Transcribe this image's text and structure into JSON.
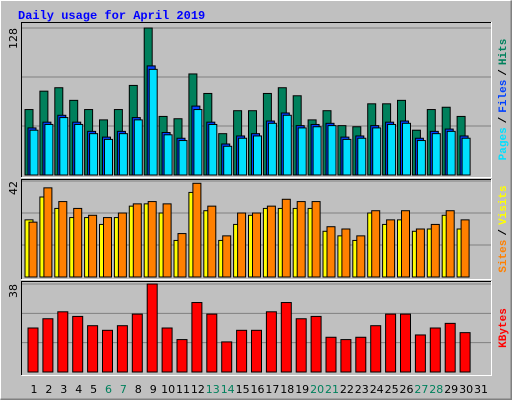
{
  "chart_data": [
    {
      "type": "bar",
      "title": "Daily usage for April 2019",
      "ylim": [
        0,
        128
      ],
      "yticks": [
        128
      ],
      "legend_separator": "/",
      "series": [
        {
          "name": "Hits",
          "color": "#00805c",
          "values": [
            57,
            73,
            76,
            65,
            57,
            48,
            57,
            78,
            128,
            51,
            49,
            88,
            71,
            36,
            56,
            56,
            71,
            76,
            69,
            48,
            56,
            43,
            42,
            62,
            62,
            65,
            39,
            57,
            59,
            51,
            null
          ]
        },
        {
          "name": "Files",
          "color": "#0040ff",
          "values": [
            41,
            46,
            52,
            46,
            38,
            33,
            38,
            50,
            95,
            37,
            32,
            60,
            46,
            27,
            34,
            36,
            47,
            54,
            43,
            44,
            45,
            33,
            34,
            43,
            46,
            47,
            32,
            38,
            40,
            34,
            null
          ]
        },
        {
          "name": "Pages",
          "color": "#00e0ff",
          "values": [
            39,
            44,
            50,
            44,
            36,
            31,
            36,
            48,
            92,
            35,
            30,
            57,
            44,
            25,
            32,
            34,
            45,
            52,
            41,
            42,
            43,
            31,
            32,
            41,
            44,
            45,
            30,
            36,
            38,
            32,
            null
          ]
        }
      ]
    },
    {
      "type": "bar",
      "ylim": [
        0,
        42
      ],
      "yticks": [
        42
      ],
      "legend_separator": "/",
      "series": [
        {
          "name": "Visits",
          "color": "#ffff00",
          "values": [
            25,
            35,
            30,
            26,
            26,
            23,
            26,
            31,
            32,
            28,
            16,
            37,
            29,
            16,
            23,
            27,
            30,
            30,
            30,
            30,
            20,
            18,
            16,
            28,
            23,
            25,
            20,
            21,
            27,
            21,
            null
          ]
        },
        {
          "name": "Sites",
          "color": "#ff8000",
          "values": [
            24,
            39,
            33,
            30,
            27,
            26,
            28,
            32,
            33,
            32,
            19,
            41,
            31,
            18,
            28,
            28,
            31,
            34,
            33,
            33,
            22,
            21,
            18,
            29,
            25,
            29,
            21,
            23,
            29,
            25,
            null
          ]
        }
      ]
    },
    {
      "type": "bar",
      "ylim": [
        0,
        38
      ],
      "yticks": [
        38
      ],
      "categories": [
        "1",
        "2",
        "3",
        "4",
        "5",
        "6",
        "7",
        "8",
        "9",
        "10",
        "11",
        "12",
        "13",
        "14",
        "15",
        "16",
        "17",
        "18",
        "19",
        "20",
        "21",
        "22",
        "23",
        "24",
        "25",
        "26",
        "27",
        "28",
        "29",
        "30",
        "31"
      ],
      "weekend": [
        "6",
        "7",
        "13",
        "14",
        "20",
        "21",
        "27",
        "28"
      ],
      "weekend_color": "#00805c",
      "weekday_color": "#000000",
      "series": [
        {
          "name": "KBytes",
          "color": "#ff0000",
          "values": [
            19,
            23,
            26,
            24,
            20,
            18,
            20,
            25,
            38,
            19,
            14,
            30,
            25,
            13,
            18,
            18,
            26,
            30,
            23,
            24,
            15,
            14,
            15,
            20,
            25,
            25,
            16,
            19,
            21,
            17,
            null
          ]
        }
      ]
    }
  ]
}
